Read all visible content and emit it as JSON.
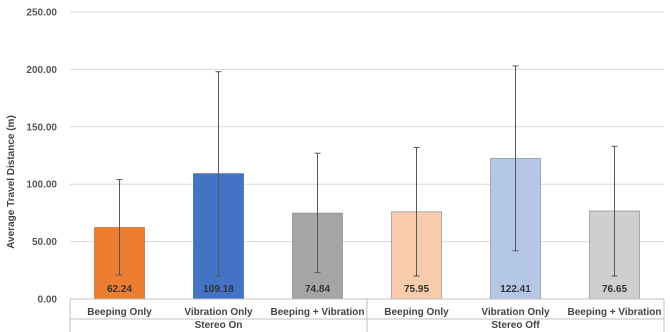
{
  "chart_data": {
    "type": "bar",
    "ylabel": "Average Travel Distance (m)",
    "ylim": [
      0,
      250
    ],
    "yticks": [
      "0.00",
      "50.00",
      "100.00",
      "150.00",
      "200.00",
      "250.00"
    ],
    "grid": true,
    "groups": [
      {
        "name": "Stereo On",
        "bars": [
          {
            "category": "Beeping Only",
            "value": 62.24,
            "label": "62.24",
            "error": [
              21,
              104
            ],
            "color": "#ED7D31"
          },
          {
            "category": "Vibration Only",
            "value": 109.18,
            "label": "109.18",
            "error": [
              20,
              198
            ],
            "color": "#4472C4"
          },
          {
            "category": "Beeping + Vibration",
            "value": 74.84,
            "label": "74.84",
            "error": [
              23,
              127
            ],
            "color": "#A5A5A5"
          }
        ]
      },
      {
        "name": "Stereo Off",
        "bars": [
          {
            "category": "Beeping Only",
            "value": 75.95,
            "label": "75.95",
            "error": [
              20,
              132
            ],
            "color": "#F8CBAD"
          },
          {
            "category": "Vibration Only",
            "value": 122.41,
            "label": "122.41",
            "error": [
              42,
              203
            ],
            "color": "#B4C7E7"
          },
          {
            "category": "Beeping + Vibration",
            "value": 76.65,
            "label": "76.65",
            "error": [
              20,
              133
            ],
            "color": "#D0CECE"
          }
        ]
      }
    ]
  }
}
